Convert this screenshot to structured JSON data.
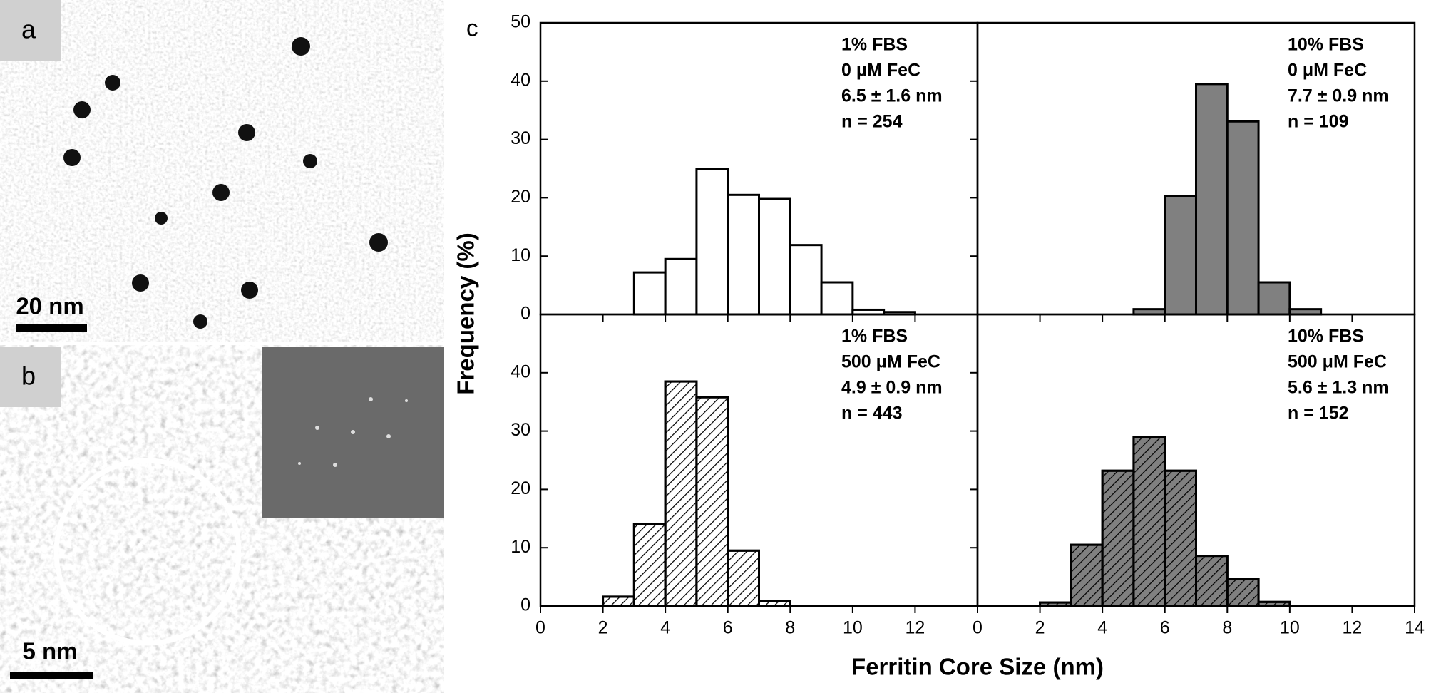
{
  "images": [
    {
      "label": "a",
      "scale_bar": "20 nm"
    },
    {
      "label": "b",
      "scale_bar": "5 nm"
    }
  ],
  "figure": {
    "panel_label": "c",
    "ylabel": "Frequency (%)",
    "xlabel": "Ferritin Core Size (nm)"
  },
  "chart_data": [
    {
      "type": "histogram",
      "annotation": [
        "1% FBS",
        "0 μM FeC",
        "6.5 ± 1.6 nm",
        "n = 254"
      ],
      "bins": [
        3,
        4,
        5,
        6,
        7,
        8,
        9,
        10,
        11,
        12
      ],
      "counts": [
        7.2,
        9.5,
        25,
        20.5,
        19.8,
        11.9,
        5.5,
        0.8,
        0.4
      ],
      "color": "#ffffff",
      "hatch": false,
      "xlim": [
        0,
        14
      ],
      "ylim": [
        0,
        50
      ],
      "yticks": [
        0,
        10,
        20,
        30,
        40,
        50
      ]
    },
    {
      "type": "histogram",
      "annotation": [
        "10% FBS",
        "0 μM FeC",
        "7.7 ± 0.9 nm",
        "n = 109"
      ],
      "bins": [
        5,
        6,
        7,
        8,
        9,
        10,
        11
      ],
      "counts": [
        0.9,
        20.3,
        39.5,
        33.1,
        5.5,
        0.9
      ],
      "color": "#808080",
      "hatch": false,
      "xlim": [
        0,
        14
      ],
      "ylim": [
        0,
        50
      ]
    },
    {
      "type": "histogram",
      "annotation": [
        "1% FBS",
        "500 μM FeC",
        "4.9 ± 0.9 nm",
        "n = 443"
      ],
      "bins": [
        2,
        3,
        4,
        5,
        6,
        7,
        8
      ],
      "counts": [
        1.6,
        14,
        38.5,
        35.8,
        9.5,
        0.9
      ],
      "color": "#ffffff",
      "hatch": true,
      "xlim": [
        0,
        14
      ],
      "ylim": [
        0,
        50
      ],
      "yticks": [
        0,
        10,
        20,
        30,
        40
      ],
      "xticks": [
        0,
        2,
        4,
        6,
        8,
        10,
        12
      ]
    },
    {
      "type": "histogram",
      "annotation": [
        "10% FBS",
        "500 μM FeC",
        "5.6 ± 1.3 nm",
        "n = 152"
      ],
      "bins": [
        2,
        3,
        4,
        5,
        6,
        7,
        8,
        9,
        10
      ],
      "counts": [
        0.6,
        10.5,
        23.2,
        29,
        23.2,
        8.6,
        4.6,
        0.7
      ],
      "color": "#808080",
      "hatch": true,
      "xlim": [
        0,
        14
      ],
      "ylim": [
        0,
        50
      ],
      "xticks": [
        0,
        2,
        4,
        6,
        8,
        10,
        12,
        14
      ]
    }
  ]
}
